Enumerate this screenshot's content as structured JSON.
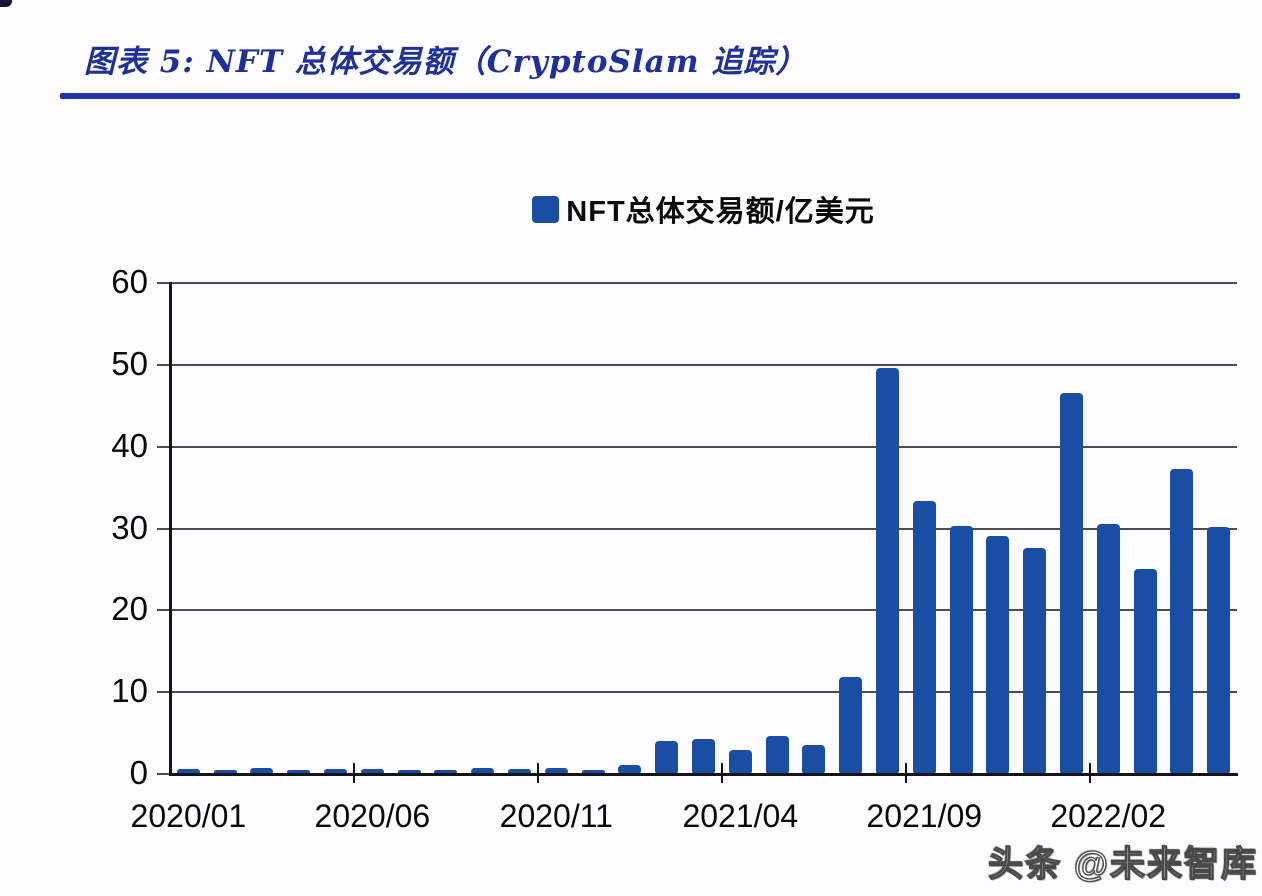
{
  "figure": {
    "title": "图表 5:  NFT 总体交易额（CryptoSlam 追踪）",
    "watermark": "头条 @未来智库"
  },
  "legend": {
    "swatch_icon": "blue-square-icon",
    "label": "NFT总体交易额/亿美元"
  },
  "chart_data": {
    "type": "bar",
    "title": "图表 5: NFT 总体交易额（CryptoSlam 追踪）",
    "legend": [
      "NFT总体交易额/亿美元"
    ],
    "legend_position": "top-center",
    "ylabel": "",
    "xlabel": "",
    "ylim": [
      0,
      60
    ],
    "y_ticks": [
      0,
      10,
      20,
      30,
      40,
      50,
      60
    ],
    "grid": true,
    "categories": [
      "2020/01",
      "2020/02",
      "2020/03",
      "2020/04",
      "2020/05",
      "2020/06",
      "2020/07",
      "2020/08",
      "2020/09",
      "2020/10",
      "2020/11",
      "2020/12",
      "2021/01",
      "2021/02",
      "2021/03",
      "2021/04",
      "2021/05",
      "2021/06",
      "2021/07",
      "2021/08",
      "2021/09",
      "2021/10",
      "2021/11",
      "2021/12",
      "2022/01",
      "2022/02",
      "2022/03",
      "2022/04",
      "2022/05"
    ],
    "values": [
      0.6,
      0.5,
      0.7,
      0.5,
      0.6,
      0.6,
      0.5,
      0.5,
      0.7,
      0.6,
      0.7,
      0.5,
      1.1,
      4.0,
      4.3,
      2.9,
      4.7,
      3.5,
      11.9,
      49.6,
      33.4,
      30.3,
      29.1,
      27.6,
      46.6,
      30.5,
      25.1,
      37.3,
      30.2
    ],
    "x_tick_labels": [
      "2020/01",
      "2020/06",
      "2020/11",
      "2021/04",
      "2021/09",
      "2022/02"
    ],
    "x_tick_label_indices": [
      0,
      5,
      10,
      15,
      20,
      25
    ],
    "x_boundary_tick_every": 5
  },
  "colors": {
    "bar": "#1A4EA5",
    "title": "#1F3199",
    "rule": "#2033B3",
    "axis": "#141414",
    "grid": "#4D4D4D",
    "text": "#0A0A0A",
    "background": "#FCFCFE",
    "watermark_fill": "#FFFFFF",
    "watermark_outline": "#4A4A4A"
  }
}
